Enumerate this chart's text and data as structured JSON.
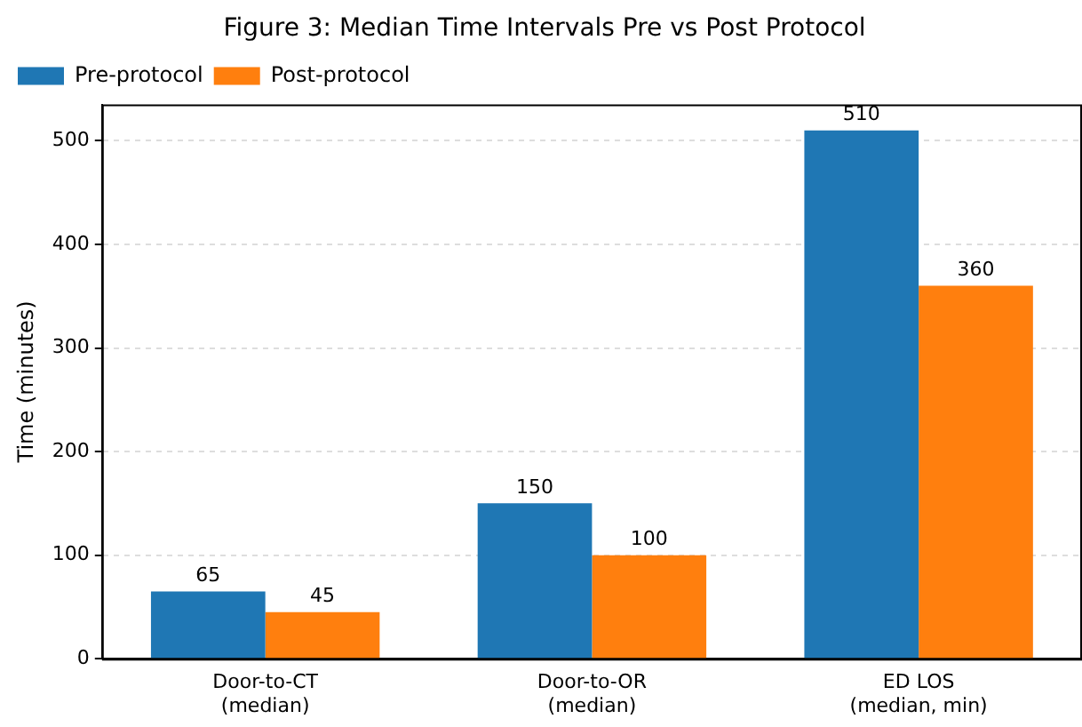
{
  "chart_data": {
    "type": "bar",
    "title": "Figure 3: Median Time Intervals Pre vs Post Protocol",
    "ylabel": "Time (minutes)",
    "categories": [
      "Door-to-CT\n(median)",
      "Door-to-OR\n(median)",
      "ED LOS\n(median, min)"
    ],
    "series": [
      {
        "name": "Pre-protocol",
        "color": "#1f77b4",
        "values": [
          65,
          150,
          510
        ]
      },
      {
        "name": "Post-protocol",
        "color": "#ff7f0e",
        "values": [
          45,
          100,
          360
        ]
      }
    ],
    "ylim": [
      0,
      535
    ],
    "yticks": [
      0,
      100,
      200,
      300,
      400,
      500
    ],
    "grid": "y",
    "legend": "top left",
    "data_labels": true
  }
}
